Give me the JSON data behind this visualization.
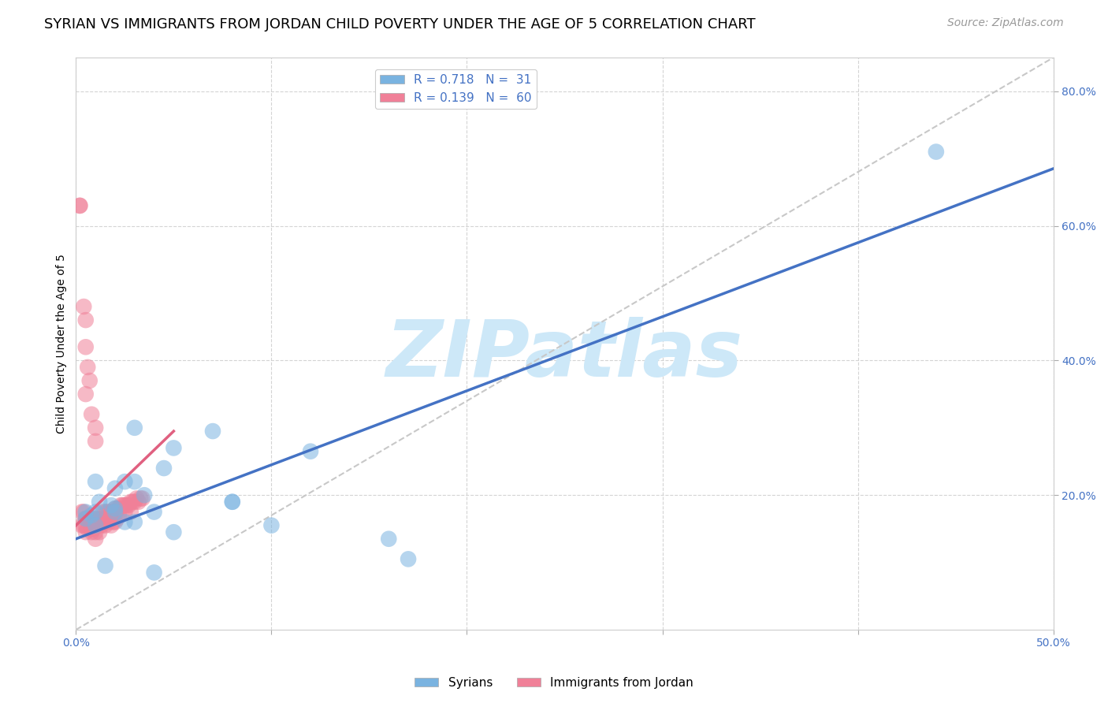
{
  "title": "SYRIAN VS IMMIGRANTS FROM JORDAN CHILD POVERTY UNDER THE AGE OF 5 CORRELATION CHART",
  "source": "Source: ZipAtlas.com",
  "ylabel_label": "Child Poverty Under the Age of 5",
  "syrian_color": "#7ab3e0",
  "jordan_color": "#f08098",
  "syrian_line_color": "#4472c4",
  "jordan_line_color": "#e06080",
  "diagonal_color": "#c8c8c8",
  "watermark_color": "#cde8f8",
  "watermark_text": "ZIPatlas",
  "background_color": "#ffffff",
  "xlim": [
    0.0,
    0.5
  ],
  "ylim": [
    0.0,
    0.85
  ],
  "title_fontsize": 13,
  "source_fontsize": 10,
  "axis_label_fontsize": 10,
  "tick_fontsize": 10,
  "legend_fontsize": 11,
  "syrian_scatter_x": [
    0.44,
    0.12,
    0.05,
    0.03,
    0.07,
    0.018,
    0.08,
    0.025,
    0.04,
    0.045,
    0.035,
    0.03,
    0.02,
    0.01,
    0.012,
    0.02,
    0.01,
    0.008,
    0.005,
    0.005,
    0.01,
    0.025,
    0.05,
    0.08,
    0.1,
    0.16,
    0.17,
    0.02,
    0.03,
    0.04,
    0.015
  ],
  "syrian_scatter_y": [
    0.71,
    0.265,
    0.27,
    0.3,
    0.295,
    0.185,
    0.19,
    0.22,
    0.175,
    0.24,
    0.2,
    0.22,
    0.21,
    0.22,
    0.19,
    0.18,
    0.175,
    0.17,
    0.175,
    0.165,
    0.155,
    0.16,
    0.145,
    0.19,
    0.155,
    0.135,
    0.105,
    0.175,
    0.16,
    0.085,
    0.095
  ],
  "jordan_scatter_x": [
    0.003,
    0.003,
    0.004,
    0.004,
    0.005,
    0.005,
    0.005,
    0.006,
    0.006,
    0.007,
    0.008,
    0.008,
    0.008,
    0.009,
    0.009,
    0.01,
    0.01,
    0.01,
    0.01,
    0.012,
    0.012,
    0.012,
    0.013,
    0.013,
    0.014,
    0.014,
    0.015,
    0.015,
    0.015,
    0.016,
    0.016,
    0.017,
    0.017,
    0.018,
    0.018,
    0.018,
    0.019,
    0.019,
    0.02,
    0.02,
    0.02,
    0.021,
    0.021,
    0.022,
    0.022,
    0.023,
    0.024,
    0.025,
    0.025,
    0.026,
    0.027,
    0.028,
    0.028,
    0.029,
    0.03,
    0.031,
    0.032,
    0.033,
    0.034,
    0.002
  ],
  "jordan_scatter_y": [
    0.175,
    0.155,
    0.175,
    0.155,
    0.165,
    0.155,
    0.145,
    0.165,
    0.15,
    0.165,
    0.16,
    0.15,
    0.145,
    0.165,
    0.15,
    0.165,
    0.155,
    0.145,
    0.135,
    0.165,
    0.155,
    0.145,
    0.165,
    0.155,
    0.175,
    0.16,
    0.175,
    0.165,
    0.155,
    0.175,
    0.165,
    0.175,
    0.16,
    0.175,
    0.165,
    0.155,
    0.175,
    0.16,
    0.18,
    0.17,
    0.16,
    0.18,
    0.165,
    0.18,
    0.17,
    0.185,
    0.185,
    0.185,
    0.175,
    0.185,
    0.185,
    0.19,
    0.175,
    0.19,
    0.19,
    0.195,
    0.19,
    0.195,
    0.195,
    0.63
  ],
  "jordan_outlier_x": [
    0.002,
    0.004,
    0.005,
    0.005,
    0.006,
    0.007,
    0.005,
    0.008,
    0.01,
    0.01
  ],
  "jordan_outlier_y": [
    0.63,
    0.48,
    0.46,
    0.42,
    0.39,
    0.37,
    0.35,
    0.32,
    0.3,
    0.28
  ],
  "syrian_line_x": [
    0.0,
    0.5
  ],
  "syrian_line_y": [
    0.135,
    0.685
  ],
  "jordan_line_x": [
    0.0,
    0.05
  ],
  "jordan_line_y": [
    0.155,
    0.295
  ]
}
